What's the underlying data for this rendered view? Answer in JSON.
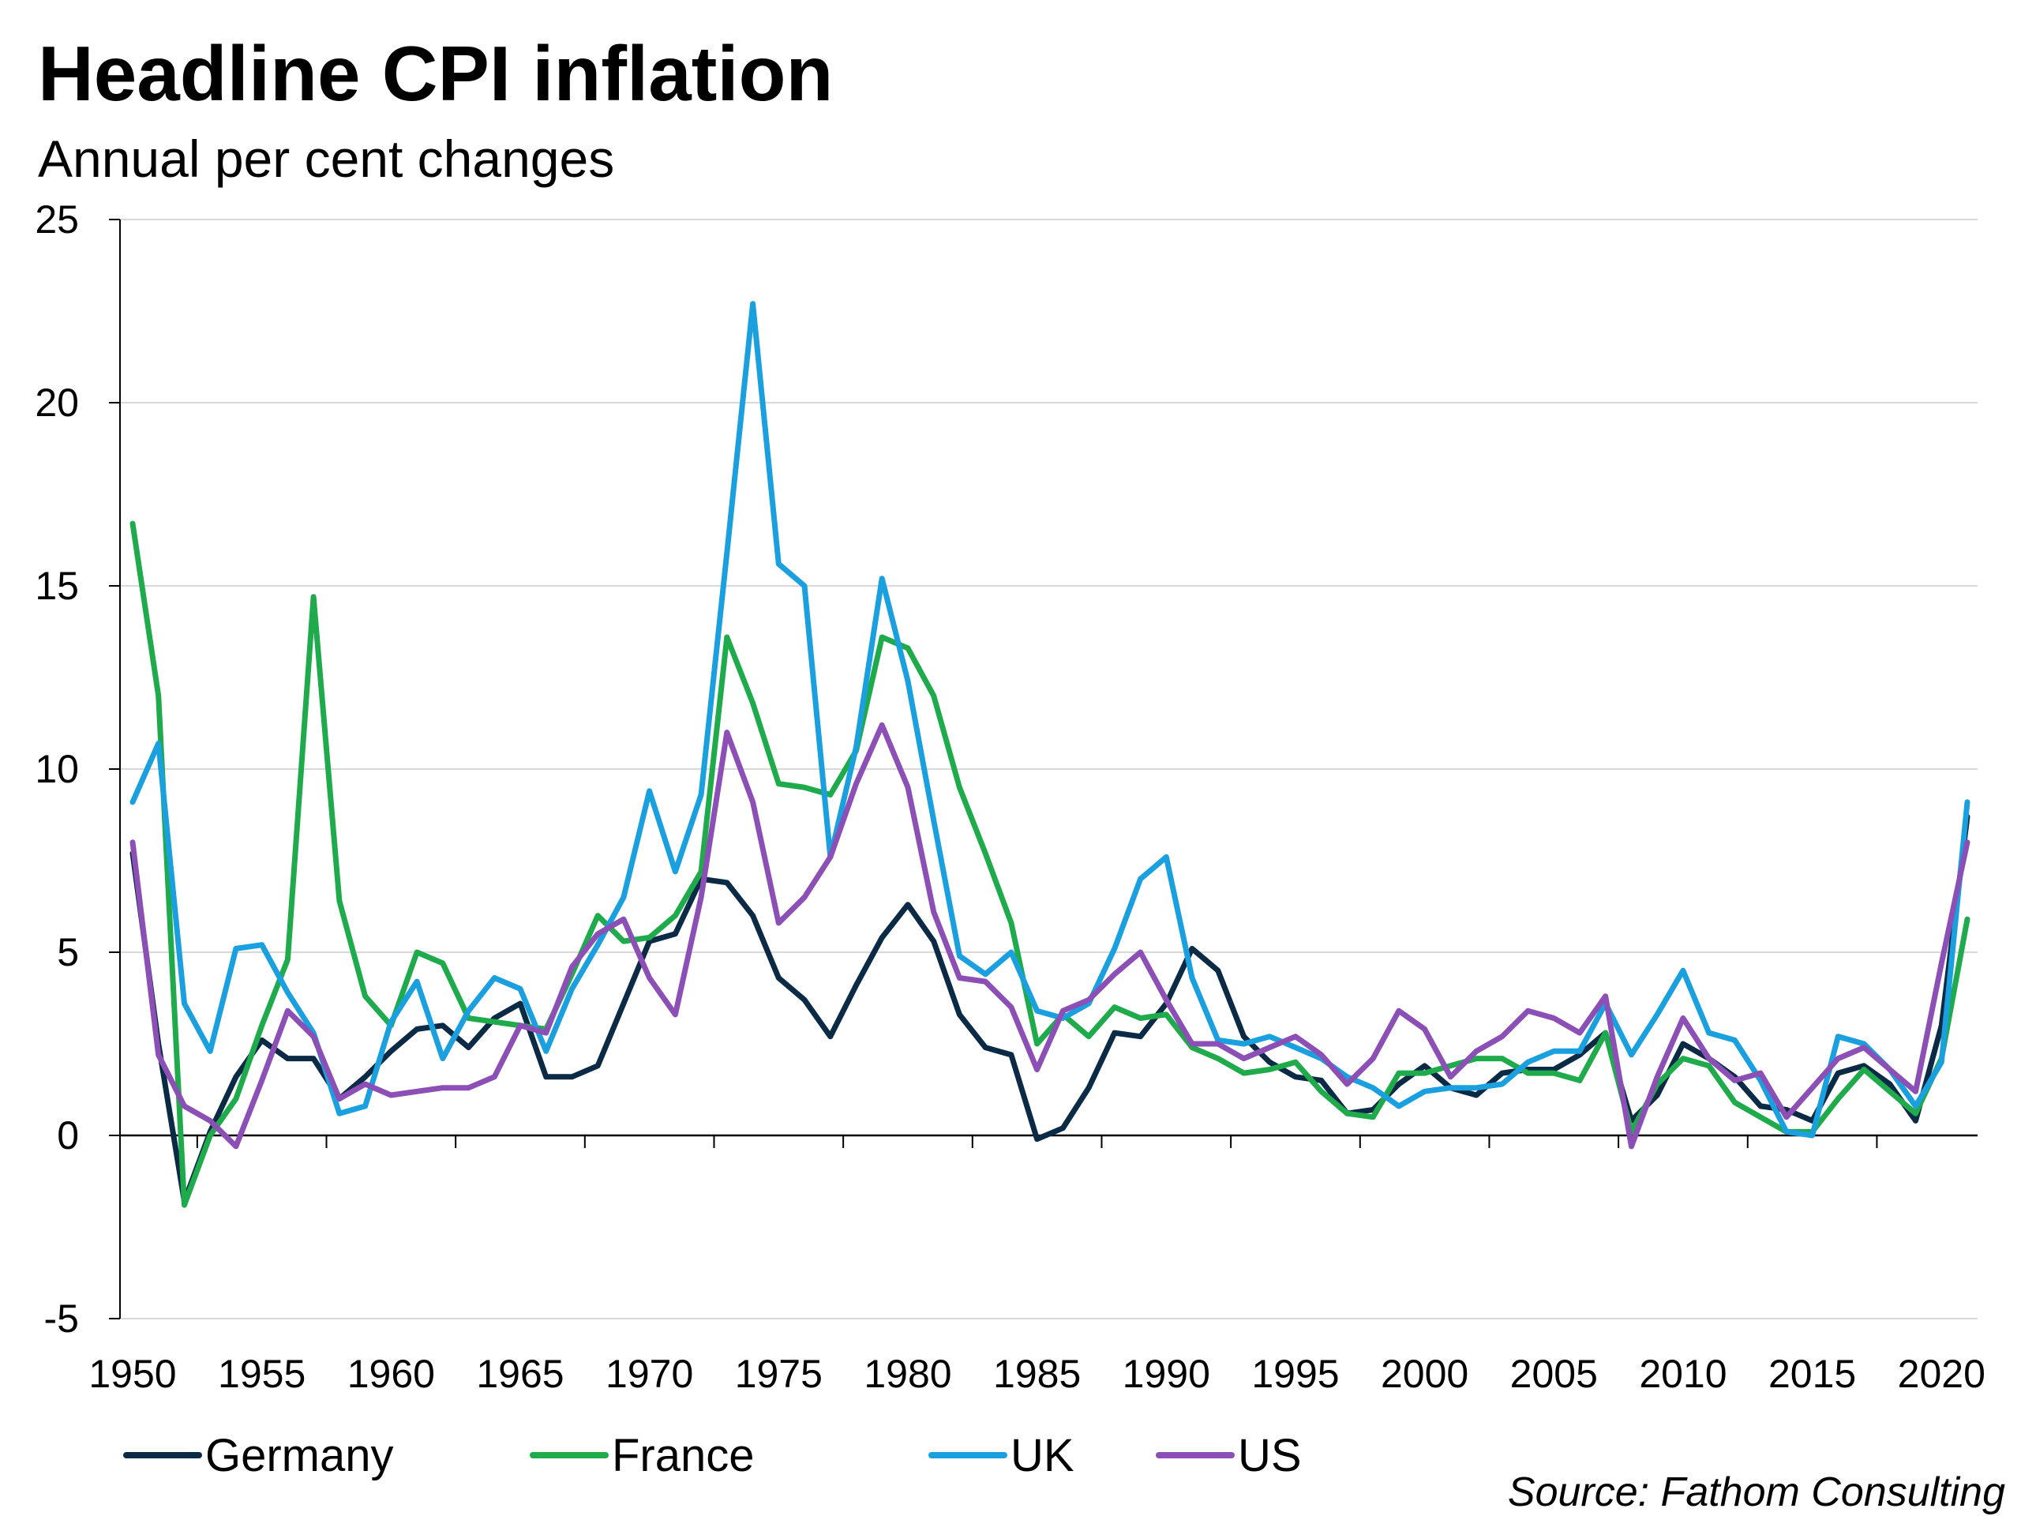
{
  "chart_data": {
    "type": "line",
    "title": "Headline CPI inflation",
    "subtitle": "Annual per cent changes",
    "source": "Source: Fathom Consulting",
    "xlabel": "",
    "ylabel": "",
    "ylim": [
      -5,
      25
    ],
    "xlim": [
      1950,
      2021
    ],
    "y_ticks": [
      -5,
      0,
      5,
      10,
      15,
      20,
      25
    ],
    "y_tick_labels": [
      "-5",
      "0",
      "5",
      "10",
      "15",
      "20",
      "25"
    ],
    "x_ticks": [
      1950,
      1955,
      1960,
      1965,
      1970,
      1975,
      1980,
      1985,
      1990,
      1995,
      2000,
      2005,
      2010,
      2015,
      2020
    ],
    "x_tick_labels": [
      "1950",
      "1955",
      "1960",
      "1965",
      "1970",
      "1975",
      "1980",
      "1985",
      "1990",
      "1995",
      "2000",
      "2005",
      "2010",
      "2015",
      "2020"
    ],
    "grid": true,
    "legend_position": "bottom",
    "years": [
      1950,
      1951,
      1952,
      1953,
      1954,
      1955,
      1956,
      1957,
      1958,
      1959,
      1960,
      1961,
      1962,
      1963,
      1964,
      1965,
      1966,
      1967,
      1968,
      1969,
      1970,
      1971,
      1972,
      1973,
      1974,
      1975,
      1976,
      1977,
      1978,
      1979,
      1980,
      1981,
      1982,
      1983,
      1984,
      1985,
      1986,
      1987,
      1988,
      1989,
      1990,
      1991,
      1992,
      1993,
      1994,
      1995,
      1996,
      1997,
      1998,
      1999,
      2000,
      2001,
      2002,
      2003,
      2004,
      2005,
      2006,
      2007,
      2008,
      2009,
      2010,
      2011,
      2012,
      2013,
      2014,
      2015,
      2016,
      2017,
      2018,
      2019,
      2020,
      2021
    ],
    "series": [
      {
        "name": "Germany",
        "color": "#0b2a45",
        "values": [
          7.7,
          2.5,
          -1.8,
          0.1,
          1.6,
          2.6,
          2.1,
          2.1,
          1.0,
          1.6,
          2.3,
          2.9,
          3.0,
          2.4,
          3.2,
          3.6,
          1.6,
          1.6,
          1.9,
          3.6,
          5.3,
          5.5,
          7.0,
          6.9,
          6.0,
          4.3,
          3.7,
          2.7,
          4.1,
          5.4,
          6.3,
          5.3,
          3.3,
          2.4,
          2.2,
          -0.1,
          0.2,
          1.3,
          2.8,
          2.7,
          3.6,
          5.1,
          4.5,
          2.7,
          2.0,
          1.6,
          1.5,
          0.6,
          0.7,
          1.4,
          1.9,
          1.3,
          1.1,
          1.7,
          1.8,
          1.8,
          2.2,
          2.8,
          0.4,
          1.1,
          2.5,
          2.1,
          1.6,
          0.8,
          0.7,
          0.4,
          1.7,
          1.9,
          1.4,
          0.4,
          3.0,
          8.7
        ]
      },
      {
        "name": "France",
        "color": "#1fab4b",
        "values": [
          16.7,
          12.0,
          -1.9,
          0.0,
          1.0,
          3.0,
          4.8,
          14.7,
          6.4,
          3.8,
          3.0,
          5.0,
          4.7,
          3.2,
          3.1,
          3.0,
          2.9,
          4.4,
          6.0,
          5.3,
          5.4,
          6.0,
          7.2,
          13.6,
          11.8,
          9.6,
          9.5,
          9.3,
          10.5,
          13.6,
          13.3,
          12.0,
          9.5,
          7.7,
          5.8,
          2.5,
          3.3,
          2.7,
          3.5,
          3.2,
          3.3,
          2.4,
          2.1,
          1.7,
          1.8,
          2.0,
          1.2,
          0.6,
          0.5,
          1.7,
          1.7,
          1.9,
          2.1,
          2.1,
          1.7,
          1.7,
          1.5,
          2.8,
          0.1,
          1.4,
          2.1,
          1.9,
          0.9,
          0.5,
          0.1,
          0.1,
          1.0,
          1.8,
          1.2,
          0.6,
          2.1,
          5.9
        ]
      },
      {
        "name": "UK",
        "color": "#1a9fdf",
        "values": [
          9.1,
          10.7,
          3.6,
          2.3,
          5.1,
          5.2,
          3.9,
          2.8,
          0.6,
          0.8,
          3.1,
          4.2,
          2.1,
          3.4,
          4.3,
          4.0,
          2.3,
          4.0,
          5.2,
          6.5,
          9.4,
          7.2,
          9.3,
          15.9,
          22.7,
          15.6,
          15.0,
          7.6,
          10.6,
          15.2,
          12.4,
          8.6,
          4.9,
          4.4,
          5.0,
          3.4,
          3.2,
          3.6,
          5.1,
          7.0,
          7.6,
          4.3,
          2.6,
          2.5,
          2.7,
          2.4,
          2.1,
          1.6,
          1.3,
          0.8,
          1.2,
          1.3,
          1.3,
          1.4,
          2.0,
          2.3,
          2.3,
          3.6,
          2.2,
          3.3,
          4.5,
          2.8,
          2.6,
          1.5,
          0.1,
          0.0,
          2.7,
          2.5,
          1.8,
          0.8,
          2.0,
          9.1
        ]
      },
      {
        "name": "US",
        "color": "#8b4fb5",
        "values": [
          8.0,
          2.2,
          0.8,
          0.4,
          -0.3,
          1.5,
          3.4,
          2.7,
          1.0,
          1.4,
          1.1,
          1.2,
          1.3,
          1.3,
          1.6,
          3.0,
          2.8,
          4.6,
          5.5,
          5.9,
          4.3,
          3.3,
          6.5,
          11.0,
          9.1,
          5.8,
          6.5,
          7.6,
          9.6,
          11.2,
          9.5,
          6.1,
          4.3,
          4.2,
          3.5,
          1.8,
          3.4,
          3.7,
          4.4,
          5.0,
          3.7,
          2.5,
          2.5,
          2.1,
          2.4,
          2.7,
          2.2,
          1.4,
          2.1,
          3.4,
          2.9,
          1.6,
          2.3,
          2.7,
          3.4,
          3.2,
          2.8,
          3.8,
          -0.3,
          1.6,
          3.2,
          2.1,
          1.5,
          1.7,
          0.5,
          1.3,
          2.1,
          2.4,
          1.8,
          1.2,
          4.7,
          8.0
        ]
      }
    ]
  }
}
